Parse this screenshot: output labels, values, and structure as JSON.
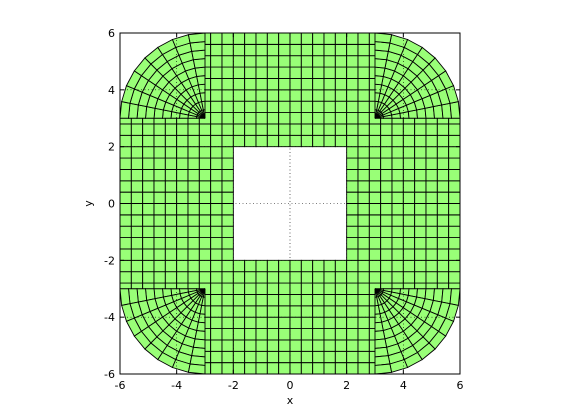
{
  "figure": {
    "background_color": "#ffffff",
    "axes_color": "#000000",
    "grid_color": "#000000",
    "grid": true
  },
  "chart_data": {
    "type": "mesh",
    "title": "",
    "xlabel": "x",
    "ylabel": "y",
    "xlim": [
      -6,
      6
    ],
    "ylim": [
      -6,
      6
    ],
    "xticks": [
      -6,
      -4,
      -2,
      0,
      2,
      4,
      6
    ],
    "yticks": [
      -6,
      -4,
      -2,
      0,
      2,
      4,
      6
    ],
    "xtick_labels": [
      "-6",
      "-4",
      "-2",
      "0",
      "2",
      "4",
      "6"
    ],
    "ytick_labels": [
      "-6",
      "-4",
      "-2",
      "0",
      "2",
      "4",
      "6"
    ],
    "domain": {
      "outer_shape": "rounded-square",
      "outer_half_width": 6,
      "corner_radius": 3,
      "hole_shape": "square",
      "hole_x": [
        -2,
        2
      ],
      "hole_y": [
        -2,
        2
      ]
    },
    "mesh": {
      "element_type": "quadrilateral",
      "cell_size": 0.4,
      "radial_layers_corner": 10,
      "fill_color": "#99ff77",
      "edge_color": "#000000"
    }
  }
}
